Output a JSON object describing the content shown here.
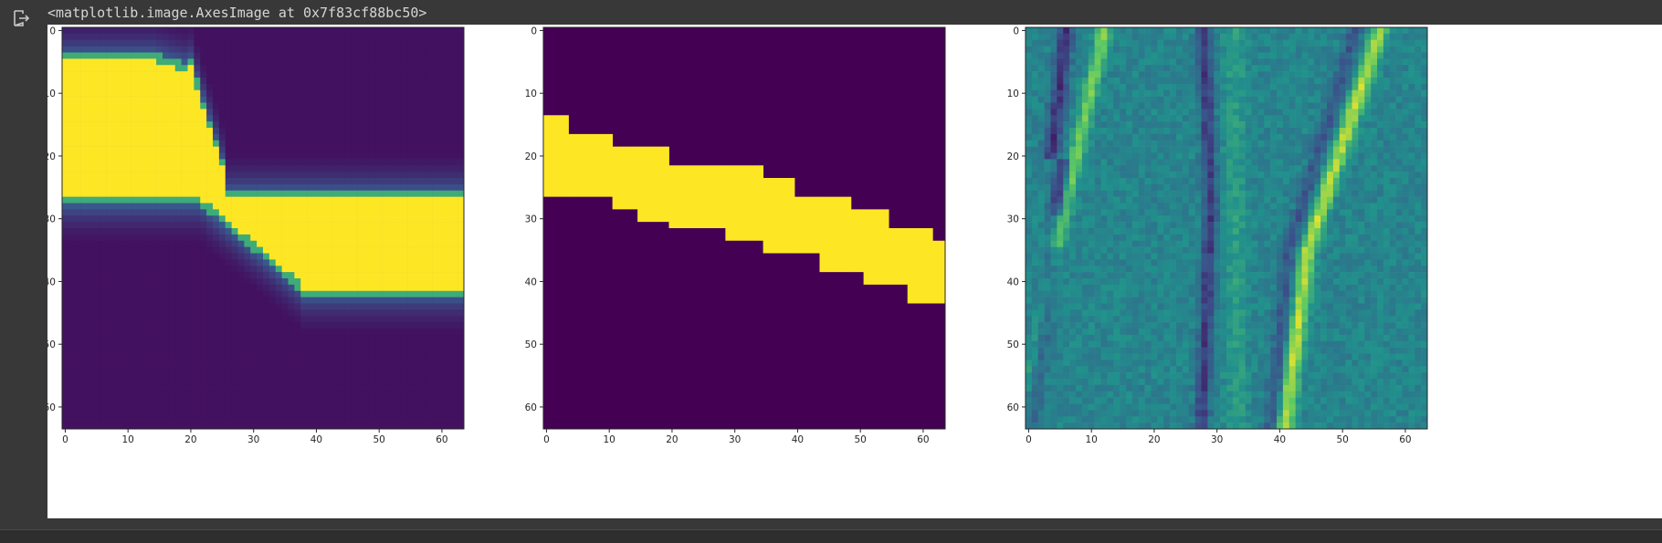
{
  "output": {
    "icon": "output-arrow-icon",
    "repr_text": "<matplotlib.image.AxesImage at 0x7f83cf88bc50>"
  },
  "colors": {
    "viridis_dark": "#440154",
    "viridis_yellow": "#fde725",
    "background": "#383838"
  },
  "chart_data": [
    {
      "type": "heatmap",
      "title": "",
      "xlabel": "",
      "ylabel": "",
      "xlim": [
        0,
        63
      ],
      "ylim": [
        63,
        0
      ],
      "x_ticks": [
        "0",
        "10",
        "20",
        "30",
        "40",
        "50",
        "60"
      ],
      "y_ticks": [
        "0",
        "10",
        "20",
        "30",
        "40",
        "50",
        "60"
      ],
      "colormap": "viridis",
      "description_of_values": "probability-like field, 1.0 band: rows 5–26 for cols 0–25, rows 27–41 for cols 25–63"
    },
    {
      "type": "heatmap",
      "title": "",
      "xlabel": "",
      "ylabel": "",
      "xlim": [
        0,
        63
      ],
      "ylim": [
        63,
        0
      ],
      "x_ticks": [
        "0",
        "10",
        "20",
        "30",
        "40",
        "50",
        "60"
      ],
      "y_ticks": [
        "0",
        "10",
        "20",
        "30",
        "40",
        "50",
        "60"
      ],
      "colormap": "viridis",
      "binary_band": [
        {
          "x": [
            0,
            4
          ],
          "y": [
            13.5,
            26.5
          ]
        },
        {
          "x": [
            4,
            11
          ],
          "y": [
            16.5,
            26.5
          ]
        },
        {
          "x": [
            11,
            15
          ],
          "y": [
            18.5,
            28.5
          ]
        },
        {
          "x": [
            15,
            20
          ],
          "y": [
            18.5,
            30.5
          ]
        },
        {
          "x": [
            20,
            29
          ],
          "y": [
            21.5,
            31.5
          ]
        },
        {
          "x": [
            29,
            35
          ],
          "y": [
            21.5,
            33.5
          ]
        },
        {
          "x": [
            35,
            40
          ],
          "y": [
            23.5,
            35.5
          ]
        },
        {
          "x": [
            40,
            44
          ],
          "y": [
            26.5,
            35.5
          ]
        },
        {
          "x": [
            44,
            49
          ],
          "y": [
            26.5,
            38.5
          ]
        },
        {
          "x": [
            49,
            51
          ],
          "y": [
            28.5,
            38.5
          ]
        },
        {
          "x": [
            51,
            55
          ],
          "y": [
            28.5,
            40.5
          ]
        },
        {
          "x": [
            55,
            58
          ],
          "y": [
            31.5,
            40.5
          ]
        },
        {
          "x": [
            58,
            62
          ],
          "y": [
            31.5,
            43.5
          ]
        },
        {
          "x": [
            62,
            64
          ],
          "y": [
            33.5,
            43.5
          ]
        }
      ]
    },
    {
      "type": "heatmap",
      "title": "",
      "xlabel": "",
      "ylabel": "",
      "xlim": [
        0,
        63
      ],
      "ylim": [
        63,
        0
      ],
      "x_ticks": [
        "0",
        "10",
        "20",
        "30",
        "40",
        "50",
        "60"
      ],
      "y_ticks": [
        "0",
        "10",
        "20",
        "30",
        "40",
        "50",
        "60"
      ],
      "colormap": "viridis"
    }
  ]
}
